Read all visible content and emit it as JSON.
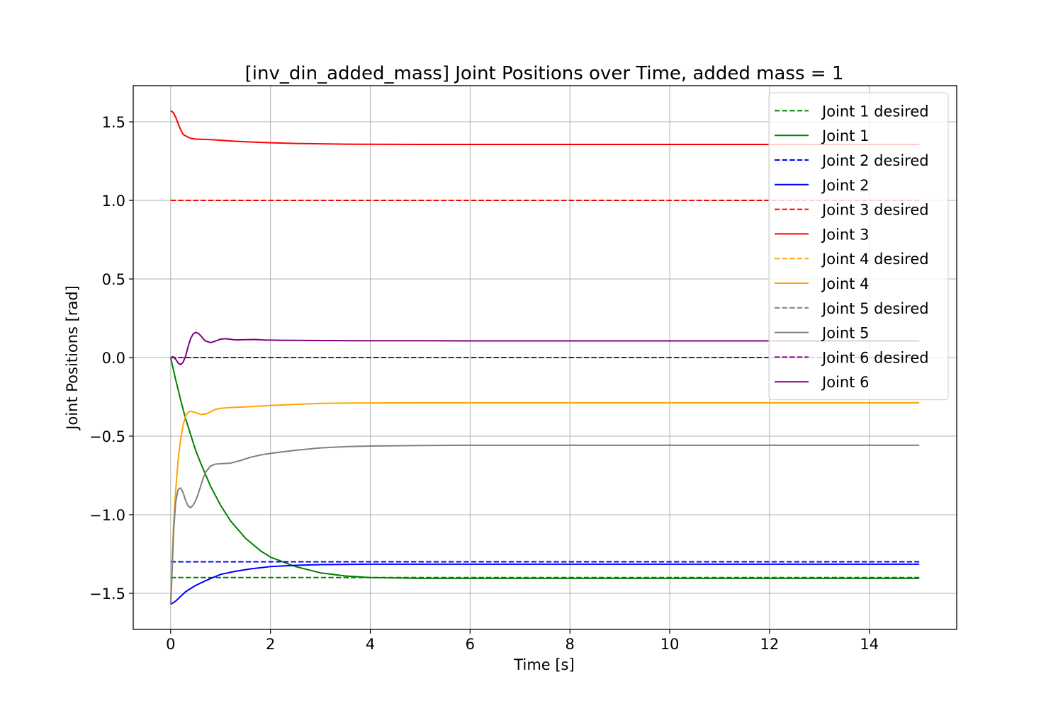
{
  "chart_data": {
    "type": "line",
    "title": "[inv_din_added_mass] Joint Positions over Time, added mass = 1",
    "xlabel": "Time [s]",
    "ylabel": "Joint Positions [rad]",
    "xlim": [
      -0.75,
      15.75
    ],
    "ylim": [
      -1.73,
      1.73
    ],
    "xticks": [
      0,
      2,
      4,
      6,
      8,
      10,
      12,
      14
    ],
    "yticks": [
      1.5,
      1.0,
      0.5,
      0.0,
      -0.5,
      -1.0,
      -1.5
    ],
    "xtick_labels": [
      "0",
      "2",
      "4",
      "6",
      "8",
      "10",
      "12",
      "14"
    ],
    "ytick_labels": [
      "1.5",
      "1.0",
      "0.5",
      "0.0",
      "−0.5",
      "−1.0",
      "−1.5"
    ],
    "grid": true,
    "legend_position": "top-right",
    "series": [
      {
        "name": "Joint 1 desired",
        "color": "#008000",
        "dash": true,
        "x": [
          0,
          15
        ],
        "y": [
          -1.4,
          -1.4
        ]
      },
      {
        "name": "Joint 1",
        "color": "#008000",
        "dash": false,
        "x": [
          0,
          0.1,
          0.2,
          0.3,
          0.4,
          0.5,
          0.6,
          0.8,
          1.0,
          1.2,
          1.5,
          1.8,
          2.0,
          2.5,
          3.0,
          3.5,
          4.0,
          5.0,
          6.0,
          8.0,
          10.0,
          12.0,
          15.0
        ],
        "y": [
          0.0,
          -0.14,
          -0.27,
          -0.39,
          -0.49,
          -0.59,
          -0.67,
          -0.82,
          -0.94,
          -1.04,
          -1.15,
          -1.23,
          -1.27,
          -1.33,
          -1.37,
          -1.39,
          -1.4,
          -1.405,
          -1.405,
          -1.405,
          -1.405,
          -1.405,
          -1.405
        ]
      },
      {
        "name": "Joint 2 desired",
        "color": "#0000ff",
        "dash": true,
        "x": [
          0,
          15
        ],
        "y": [
          -1.3,
          -1.3
        ]
      },
      {
        "name": "Joint 2",
        "color": "#0000ff",
        "dash": false,
        "x": [
          0,
          0.1,
          0.2,
          0.3,
          0.5,
          0.7,
          1.0,
          1.3,
          1.6,
          2.0,
          2.5,
          3.0,
          4.0,
          5.0,
          6.0,
          8.0,
          10.0,
          15.0
        ],
        "y": [
          -1.57,
          -1.55,
          -1.52,
          -1.49,
          -1.45,
          -1.42,
          -1.38,
          -1.36,
          -1.345,
          -1.33,
          -1.322,
          -1.318,
          -1.315,
          -1.315,
          -1.315,
          -1.315,
          -1.315,
          -1.315
        ]
      },
      {
        "name": "Joint 3 desired",
        "color": "#ff0000",
        "dash": true,
        "x": [
          0,
          15
        ],
        "y": [
          1.0,
          1.0
        ]
      },
      {
        "name": "Joint 3",
        "color": "#ff0000",
        "dash": false,
        "x": [
          0,
          0.05,
          0.1,
          0.15,
          0.2,
          0.25,
          0.3,
          0.4,
          0.5,
          0.7,
          0.9,
          1.2,
          1.5,
          2.0,
          2.5,
          3.0,
          3.5,
          4.0,
          5.0,
          6.0,
          8.0,
          10.0,
          15.0
        ],
        "y": [
          1.57,
          1.56,
          1.53,
          1.49,
          1.45,
          1.42,
          1.41,
          1.395,
          1.39,
          1.388,
          1.385,
          1.378,
          1.373,
          1.367,
          1.362,
          1.36,
          1.358,
          1.357,
          1.356,
          1.356,
          1.356,
          1.356,
          1.356
        ]
      },
      {
        "name": "Joint 4 desired",
        "color": "#ffa500",
        "dash": true,
        "x": [],
        "y": []
      },
      {
        "name": "Joint 4",
        "color": "#ffa500",
        "dash": false,
        "x": [
          0,
          0.03,
          0.06,
          0.1,
          0.15,
          0.2,
          0.25,
          0.3,
          0.35,
          0.4,
          0.5,
          0.6,
          0.7,
          0.8,
          0.9,
          1.0,
          1.2,
          1.5,
          2.0,
          2.5,
          3.0,
          3.5,
          4.0,
          5.0,
          6.0,
          8.0,
          10.0,
          15.0
        ],
        "y": [
          -1.57,
          -1.3,
          -1.05,
          -0.85,
          -0.65,
          -0.52,
          -0.43,
          -0.37,
          -0.348,
          -0.342,
          -0.35,
          -0.362,
          -0.36,
          -0.345,
          -0.33,
          -0.323,
          -0.318,
          -0.314,
          -0.305,
          -0.298,
          -0.292,
          -0.29,
          -0.289,
          -0.288,
          -0.288,
          -0.288,
          -0.288,
          -0.288
        ]
      },
      {
        "name": "Joint 5 desired",
        "color": "#808080",
        "dash": true,
        "x": [],
        "y": []
      },
      {
        "name": "Joint 5",
        "color": "#808080",
        "dash": false,
        "x": [
          0,
          0.03,
          0.06,
          0.1,
          0.15,
          0.2,
          0.25,
          0.3,
          0.35,
          0.4,
          0.45,
          0.5,
          0.55,
          0.6,
          0.65,
          0.7,
          0.8,
          0.9,
          1.0,
          1.2,
          1.4,
          1.6,
          1.8,
          2.0,
          2.5,
          3.0,
          3.5,
          4.0,
          5.0,
          6.0,
          8.0,
          10.0,
          15.0
        ],
        "y": [
          -1.57,
          -1.35,
          -1.1,
          -0.92,
          -0.84,
          -0.83,
          -0.86,
          -0.91,
          -0.945,
          -0.955,
          -0.94,
          -0.91,
          -0.87,
          -0.82,
          -0.77,
          -0.73,
          -0.69,
          -0.678,
          -0.676,
          -0.672,
          -0.655,
          -0.635,
          -0.62,
          -0.61,
          -0.59,
          -0.575,
          -0.567,
          -0.563,
          -0.56,
          -0.558,
          -0.558,
          -0.558,
          -0.558
        ]
      },
      {
        "name": "Joint 6 desired",
        "color": "#800080",
        "dash": true,
        "x": [
          0,
          15
        ],
        "y": [
          0.0,
          0.0
        ]
      },
      {
        "name": "Joint 6",
        "color": "#800080",
        "dash": false,
        "x": [
          0,
          0.05,
          0.1,
          0.15,
          0.2,
          0.25,
          0.3,
          0.35,
          0.4,
          0.45,
          0.5,
          0.55,
          0.6,
          0.65,
          0.7,
          0.8,
          0.9,
          1.0,
          1.1,
          1.2,
          1.3,
          1.5,
          1.7,
          1.9,
          2.2,
          2.5,
          3.0,
          4.0,
          5.0,
          6.0,
          8.0,
          10.0,
          15.0
        ],
        "y": [
          0.0,
          0.005,
          -0.01,
          -0.035,
          -0.045,
          -0.03,
          0.01,
          0.07,
          0.12,
          0.15,
          0.16,
          0.155,
          0.14,
          0.12,
          0.105,
          0.095,
          0.105,
          0.117,
          0.12,
          0.116,
          0.112,
          0.114,
          0.115,
          0.111,
          0.11,
          0.109,
          0.108,
          0.107,
          0.107,
          0.106,
          0.106,
          0.106,
          0.106
        ]
      }
    ]
  }
}
